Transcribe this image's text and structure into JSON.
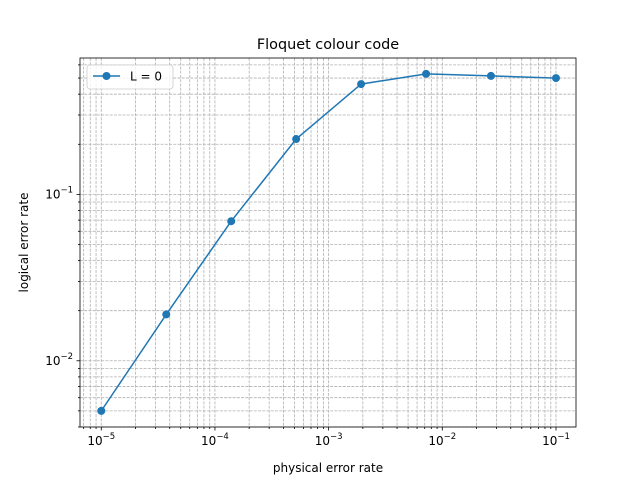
{
  "chart_data": {
    "type": "line",
    "title": "Floquet colour code",
    "xlabel": "physical error rate",
    "ylabel": "logical error rate",
    "xscale": "log",
    "yscale": "log",
    "xlim": [
      6.5e-06,
      0.15
    ],
    "ylim": [
      0.004,
      0.66
    ],
    "grid": true,
    "grid_which": "both",
    "legend_position": "top-left",
    "x_tick_labels": [
      {
        "base": "10",
        "exp": "−5",
        "value": 1e-05
      },
      {
        "base": "10",
        "exp": "−4",
        "value": 0.0001
      },
      {
        "base": "10",
        "exp": "−3",
        "value": 0.001
      },
      {
        "base": "10",
        "exp": "−2",
        "value": 0.01
      },
      {
        "base": "10",
        "exp": "−1",
        "value": 0.1
      }
    ],
    "y_tick_labels": [
      {
        "base": "10",
        "exp": "−2",
        "value": 0.01
      },
      {
        "base": "10",
        "exp": "−1",
        "value": 0.1
      }
    ],
    "series": [
      {
        "name": "L = 0",
        "color": "#1f77b4",
        "marker": "circle",
        "x": [
          1e-05,
          3.73e-05,
          0.000139,
          0.000518,
          0.00193,
          0.0072,
          0.0268,
          0.1
        ],
        "y": [
          0.005,
          0.019,
          0.069,
          0.215,
          0.46,
          0.53,
          0.515,
          0.5
        ]
      }
    ]
  }
}
